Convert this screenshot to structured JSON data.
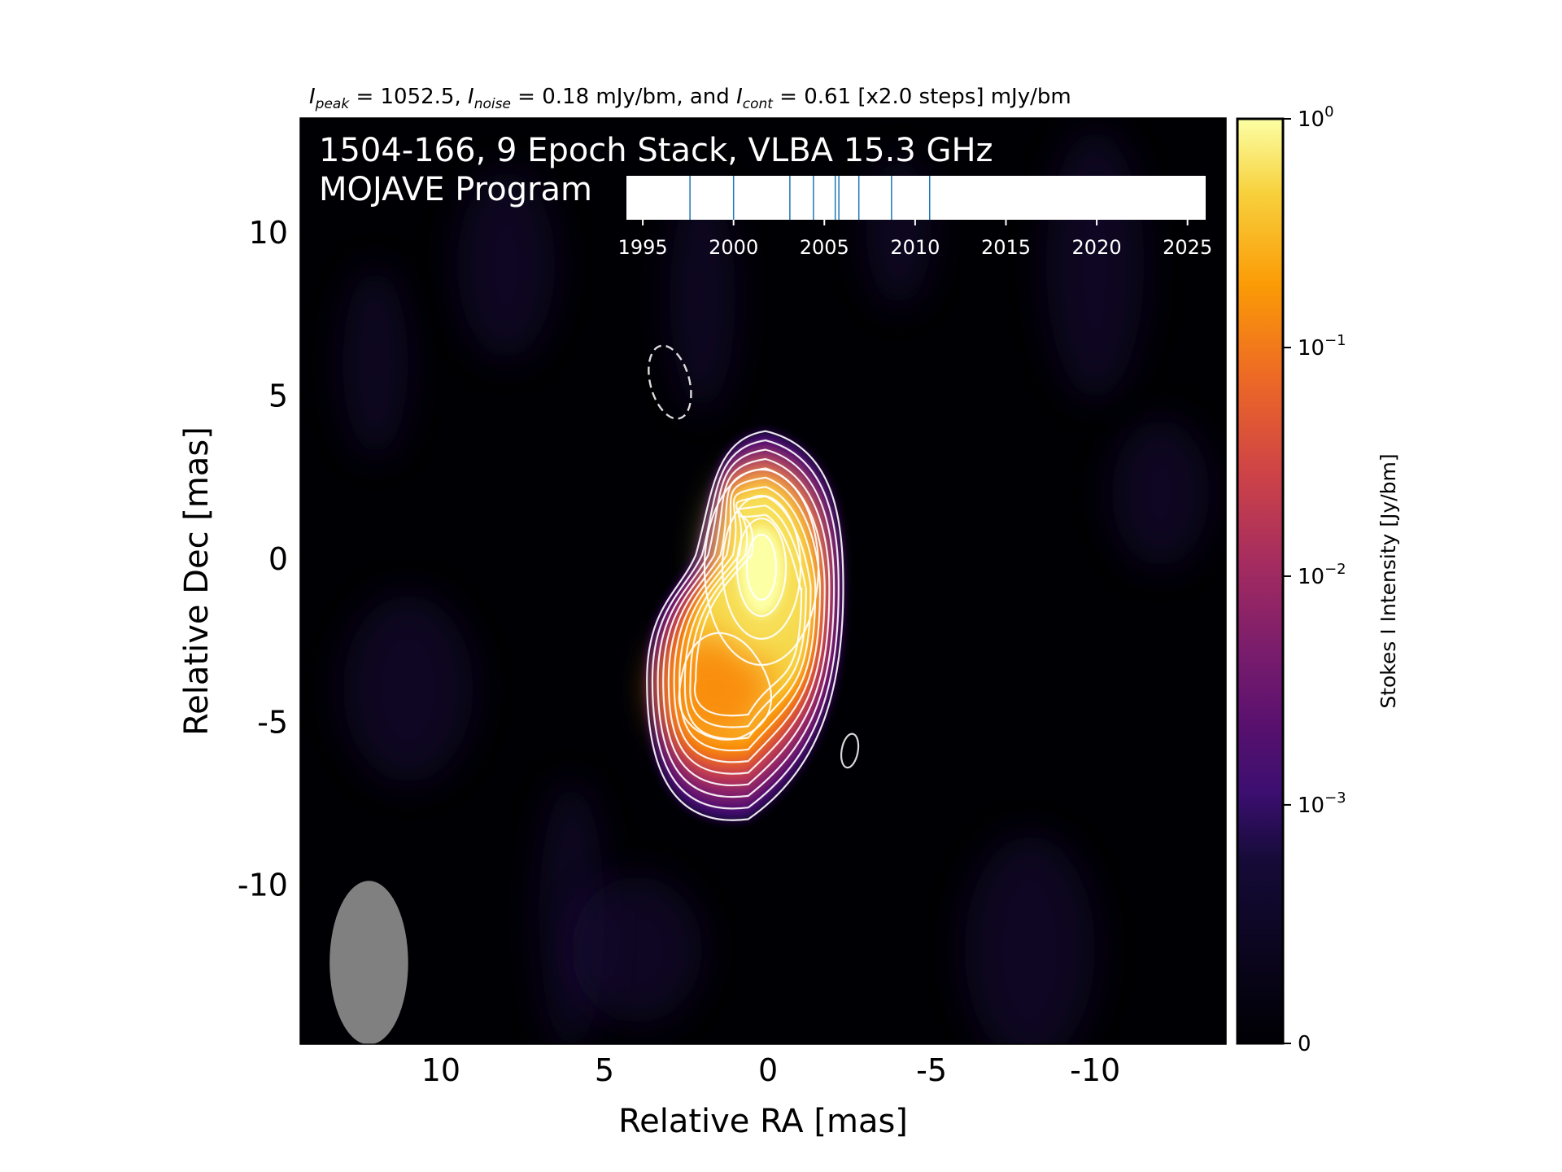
{
  "chart_data": {
    "type": "heatmap",
    "header": {
      "peak_sym": "I",
      "peak_sub": "peak",
      "peak_text": " = 1052.5, ",
      "noise_sym": "I",
      "noise_sub": "noise",
      "noise_text": " = 0.18 mJy/bm, and ",
      "cont_sym": "I",
      "cont_sub": "cont",
      "cont_text": " = 0.61 [x2.0 steps] mJy/bm"
    },
    "title_line1": "1504-166, 9 Epoch Stack, VLBA 15.3 GHz",
    "title_line2": "MOJAVE Program",
    "xlabel": "Relative RA [mas]",
    "ylabel": "Relative Dec [mas]",
    "xlim": [
      14.3,
      -14.0
    ],
    "ylim": [
      -14.9,
      13.5
    ],
    "x_ticks": [
      {
        "value": 10,
        "label": "10"
      },
      {
        "value": 5,
        "label": "5"
      },
      {
        "value": 0,
        "label": "0"
      },
      {
        "value": -5,
        "label": "-5"
      },
      {
        "value": -10,
        "label": "-10"
      }
    ],
    "y_ticks": [
      {
        "value": 10,
        "label": "10"
      },
      {
        "value": 5,
        "label": "5"
      },
      {
        "value": 0,
        "label": "0"
      },
      {
        "value": -5,
        "label": "-5"
      },
      {
        "value": -10,
        "label": "-10"
      }
    ],
    "colorbar": {
      "label": "Stokes I Intensity [Jy/bm]",
      "scale": "log",
      "colormap": "inferno",
      "ticks": [
        {
          "value": 0,
          "base": "0",
          "exp": ""
        },
        {
          "value": 0.001,
          "base": "10",
          "exp": "−3"
        },
        {
          "value": 0.01,
          "base": "10",
          "exp": "−2"
        },
        {
          "value": 0.1,
          "base": "10",
          "exp": "−1"
        },
        {
          "value": 1,
          "base": "10",
          "exp": "0"
        }
      ]
    },
    "epochs": {
      "xlim": [
        1994.1,
        2026.0
      ],
      "ticks": [
        {
          "value": 1995,
          "label": "1995"
        },
        {
          "value": 2000,
          "label": "2000"
        },
        {
          "value": 2005,
          "label": "2005"
        },
        {
          "value": 2010,
          "label": "2010"
        },
        {
          "value": 2015,
          "label": "2015"
        },
        {
          "value": 2020,
          "label": "2020"
        },
        {
          "value": 2025,
          "label": "2025"
        }
      ],
      "dates": [
        1997.6,
        2000.0,
        2003.1,
        2004.4,
        2005.6,
        2005.8,
        2006.9,
        2008.7,
        2010.8
      ]
    },
    "beam": {
      "x_center": 12.2,
      "y_center": -12.4,
      "width": 2.4,
      "height": 5.0
    },
    "source": {
      "core": {
        "x": 0.2,
        "y": -0.4
      },
      "jet_knot": {
        "x": 1.6,
        "y": -4.0
      }
    },
    "negative_contour": {
      "x": 3.0,
      "y": 5.4
    },
    "small_contour": {
      "x": -2.5,
      "y": -5.9
    },
    "colors": {
      "background": "#000004",
      "contour": "#ffffff",
      "epoch_line": "#1f77b4",
      "beam": "#808080"
    }
  }
}
